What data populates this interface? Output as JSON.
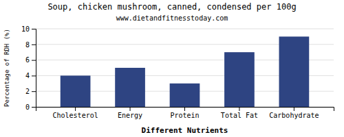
{
  "chart_data": {
    "type": "bar",
    "title": "Soup, chicken mushroom, canned, condensed per 100g",
    "subtitle": "www.dietandfitnesstoday.com",
    "categories": [
      "Cholesterol",
      "Energy",
      "Protein",
      "Total Fat",
      "Carbohydrate"
    ],
    "values": [
      4,
      5,
      3,
      7,
      9
    ],
    "color": "#2e4482",
    "xlabel": "Different Nutrients",
    "ylabel": "Percentage of RDH (%)",
    "ylim": [
      0,
      10
    ],
    "yticks": [
      0,
      2,
      4,
      6,
      8,
      10
    ],
    "grid": true
  }
}
